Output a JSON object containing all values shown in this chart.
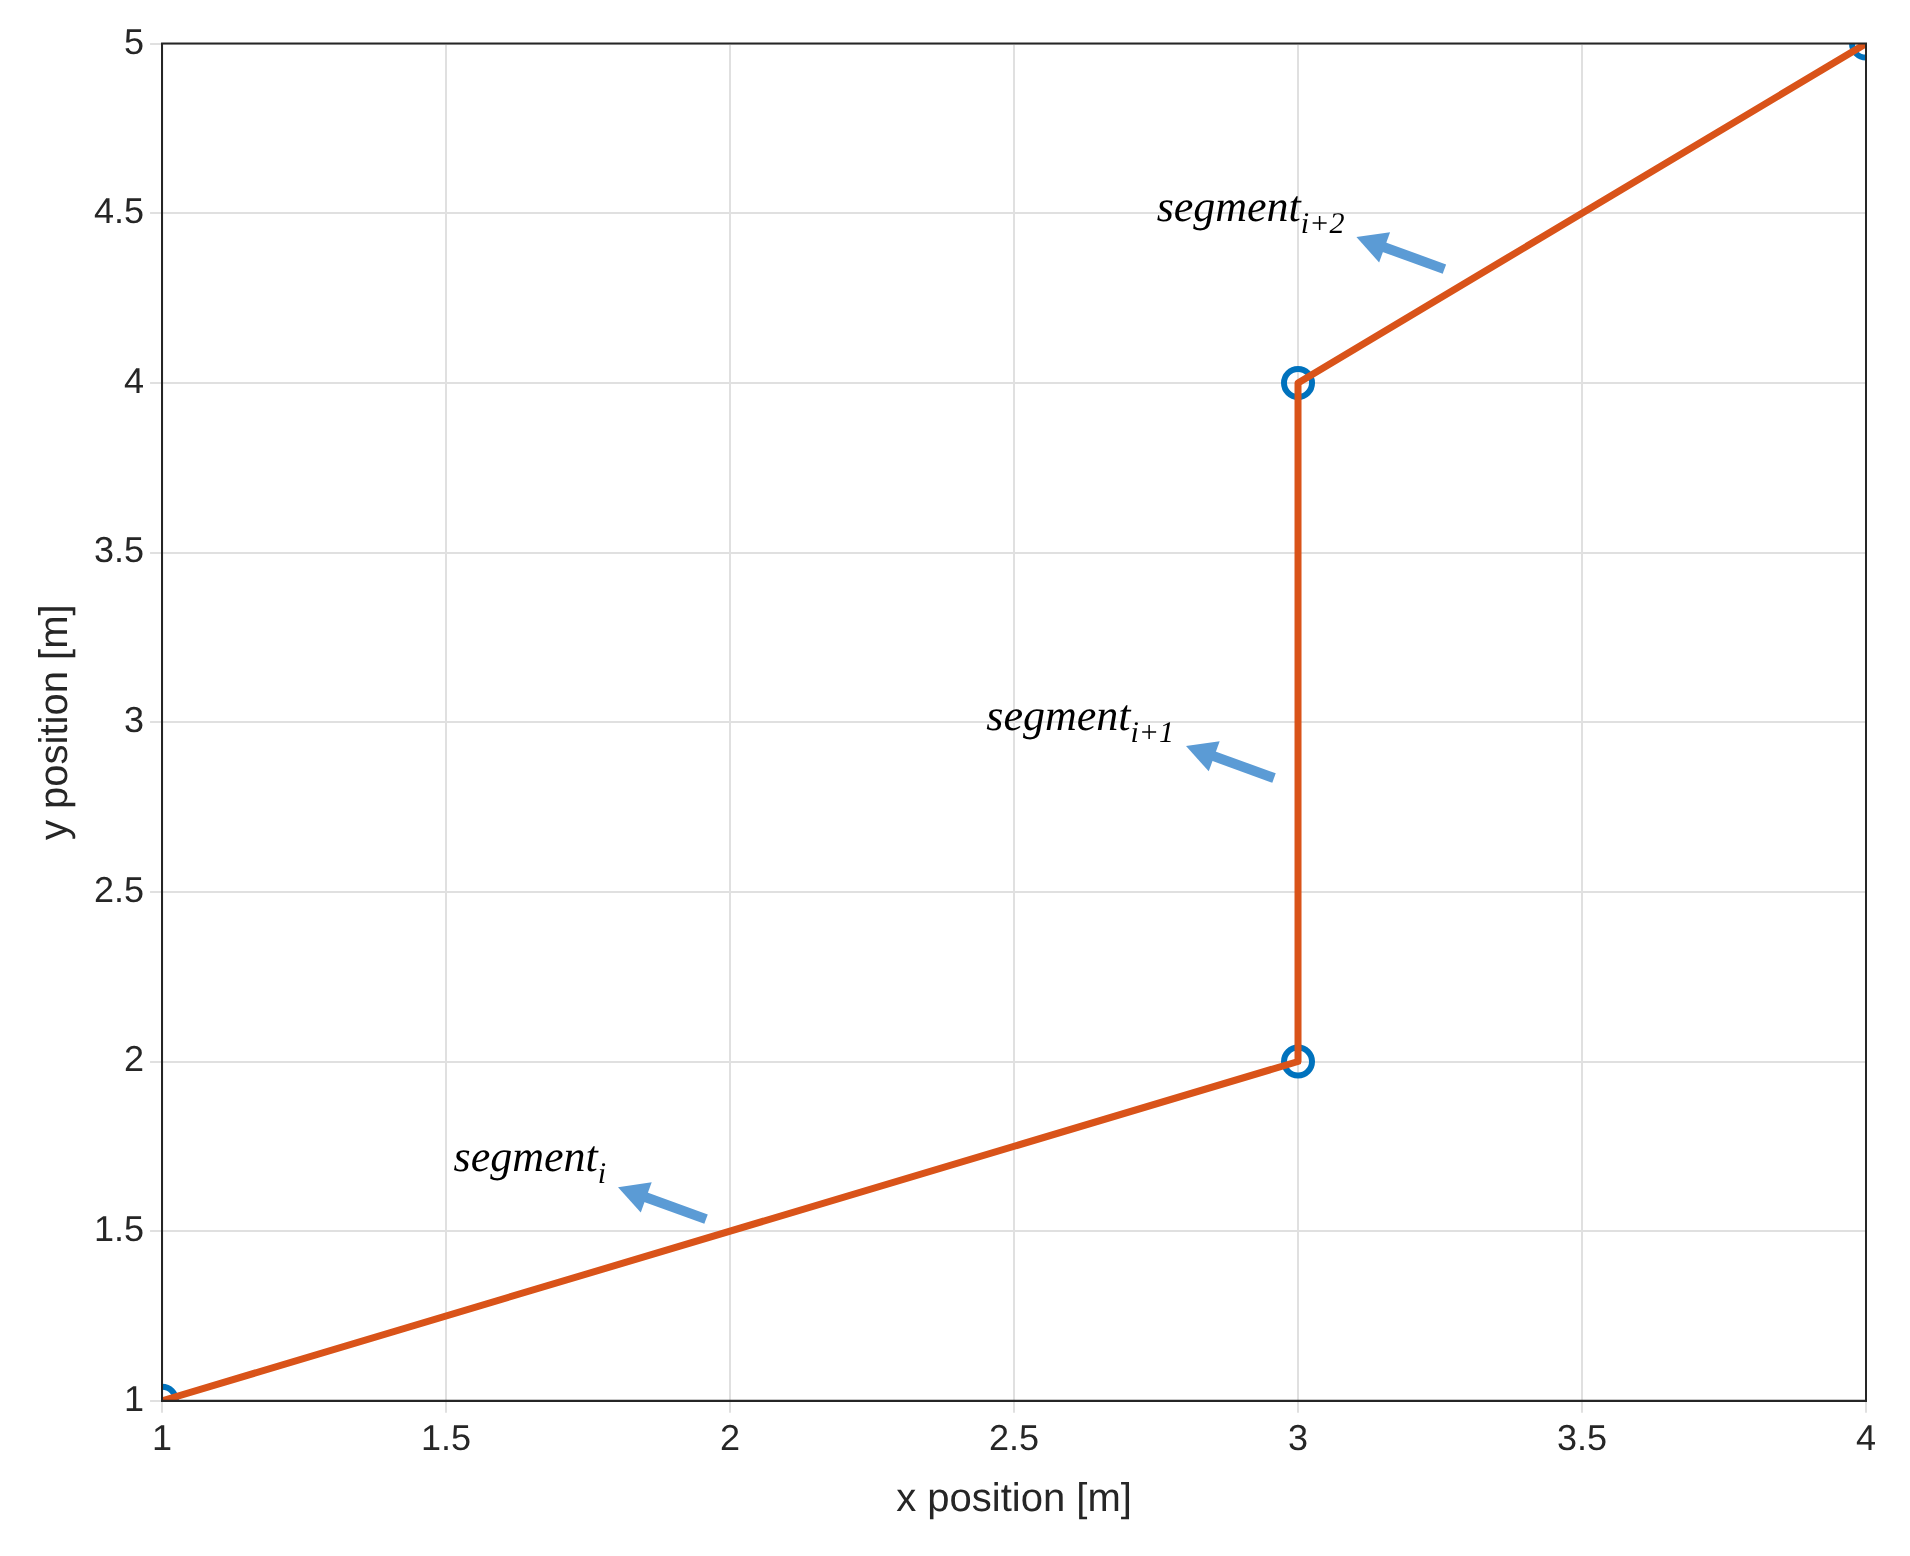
{
  "chart_data": {
    "type": "line",
    "xlabel": "x position [m]",
    "ylabel": "y position [m]",
    "xlim": [
      1,
      4
    ],
    "ylim": [
      1,
      5
    ],
    "xticks": [
      1,
      1.5,
      2,
      2.5,
      3,
      3.5,
      4
    ],
    "yticks": [
      1,
      1.5,
      2,
      2.5,
      3,
      3.5,
      4,
      4.5,
      5
    ],
    "grid": true,
    "series": [
      {
        "type": "line",
        "color": "#d95319",
        "x": [
          1,
          3,
          3,
          4
        ],
        "values": [
          1,
          2,
          4,
          5
        ],
        "marker": "none",
        "line_style": "solid"
      },
      {
        "type": "scatter",
        "color": "#0072bd",
        "x": [
          1,
          3,
          3,
          4
        ],
        "values": [
          1,
          2,
          4,
          5
        ],
        "marker": "circle"
      }
    ],
    "annotations": [
      {
        "text": "segment$_{i}$",
        "x": 2,
        "y": 1.5
      },
      {
        "text": "segment$_{i+1}$",
        "x": 3,
        "y": 2.8
      },
      {
        "text": "segment$_{i+2}$",
        "x": 3.3,
        "y": 4.3
      }
    ]
  }
}
